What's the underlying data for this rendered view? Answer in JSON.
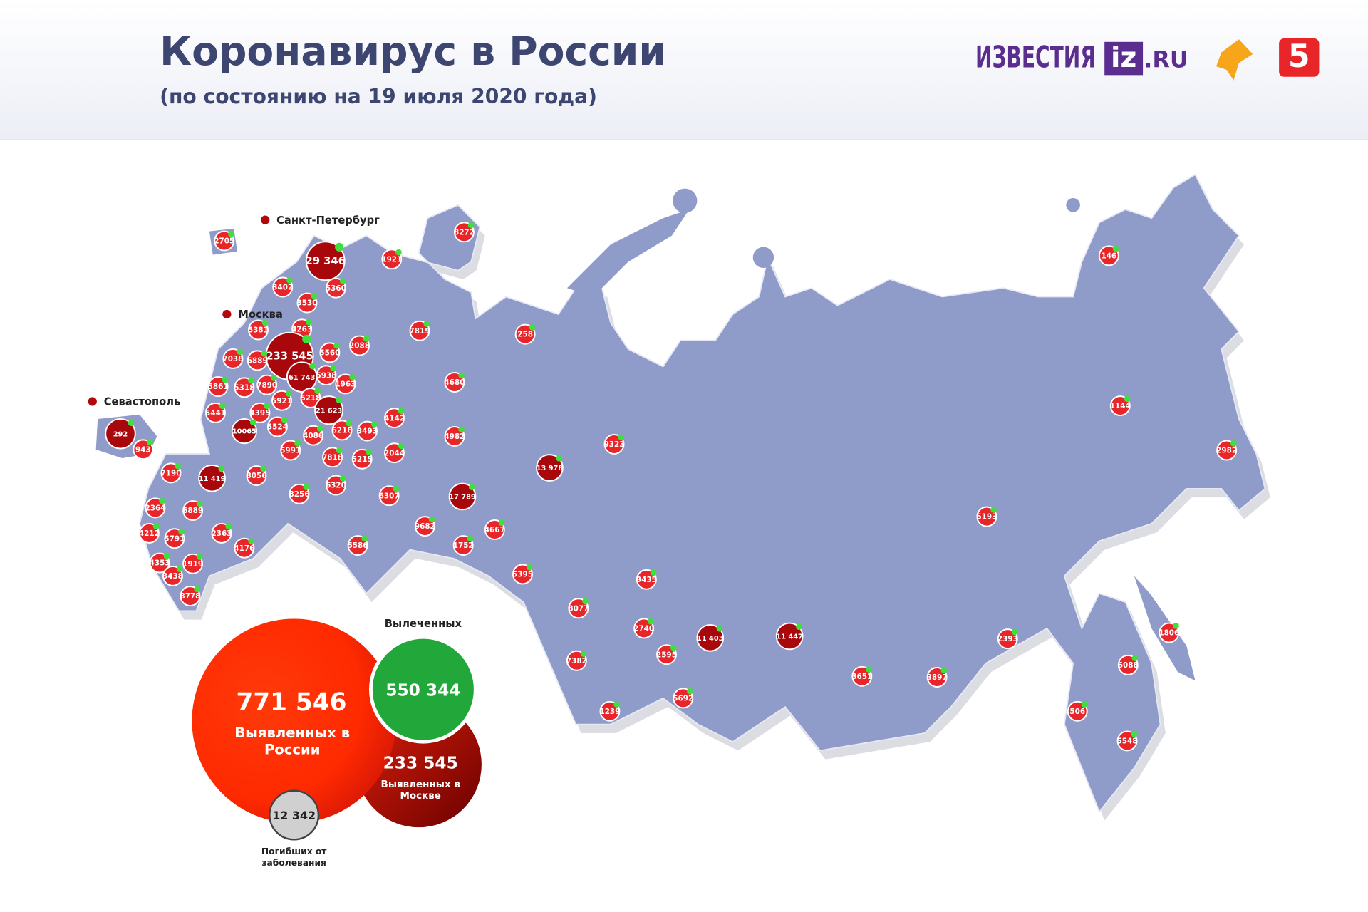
{
  "header": {
    "title": "Коронавирус в России",
    "subtitle": "(по состоянию на 19 июля 2020 года)",
    "logos": {
      "izvestia": "ИЗВЕСТИЯ",
      "iz": "iz",
      "ru": ".RU",
      "channel5": "5"
    }
  },
  "map": {
    "labels": [
      "Санкт-Петербург",
      "Москва",
      "Севастополь"
    ],
    "bubbles": [
      "2705",
      "29 346",
      "1921",
      "8272",
      "5360",
      "3402",
      "3530",
      "5381",
      "4263",
      "233 545",
      "5560",
      "2088",
      "7819",
      "258",
      "146",
      "7038",
      "6889",
      "61 743",
      "5938",
      "1963",
      "4680",
      "5861",
      "5318",
      "7890",
      "5921",
      "5218",
      "21 623",
      "4142",
      "1144",
      "5441",
      "4395",
      "10065",
      "5524",
      "4086",
      "6216",
      "3493",
      "4982",
      "9323",
      "2982",
      "292",
      "943",
      "5991",
      "7818",
      "5215",
      "2044",
      "13 978",
      "7190",
      "11 419",
      "8056",
      "6320",
      "8256",
      "6307",
      "17 789",
      "2364",
      "6889",
      "4212",
      "5791",
      "2363",
      "9682",
      "4667",
      "5193",
      "4176",
      "5586",
      "1752",
      "4353",
      "1919",
      "3438",
      "5395",
      "3435",
      "8778",
      "8077",
      "2740",
      "11 403",
      "11 447",
      "1806",
      "2393",
      "2595",
      "7382",
      "6088",
      "3651",
      "3897",
      "5692",
      "1239",
      "506",
      "5548"
    ]
  },
  "summary": {
    "total": "771 546",
    "total_label": "Выявленных в России",
    "recovered": "550 344",
    "recovered_label": "Вылеченных",
    "moscow": "233 545",
    "moscow_label": "Выявленных в Москве",
    "deaths": "12 342",
    "deaths_label": "Погибших от заболевания"
  }
}
